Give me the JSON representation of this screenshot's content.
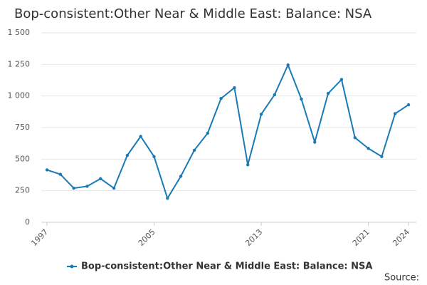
{
  "chart_data": {
    "type": "line",
    "title": "Bop-consistent:Other Near & Middle East: Balance: NSA",
    "x": [
      1997,
      1998,
      1999,
      2000,
      2001,
      2002,
      2003,
      2004,
      2005,
      2006,
      2007,
      2008,
      2009,
      2010,
      2011,
      2012,
      2013,
      2014,
      2015,
      2016,
      2017,
      2018,
      2019,
      2020,
      2021,
      2022,
      2023,
      2024
    ],
    "series": [
      {
        "name": "Bop-consistent:Other Near & Middle East: Balance: NSA",
        "color": "#1a7ab5",
        "values": [
          415,
          380,
          270,
          285,
          345,
          270,
          530,
          680,
          520,
          190,
          365,
          570,
          705,
          980,
          1065,
          455,
          855,
          1010,
          1245,
          975,
          635,
          1020,
          1130,
          670,
          585,
          520,
          860,
          930
        ]
      }
    ],
    "xlim": [
      1997,
      2024
    ],
    "xticks": [
      1997,
      2005,
      2013,
      2021,
      2024
    ],
    "ylim": [
      0,
      1500
    ],
    "yticks": [
      0,
      250,
      500,
      750,
      {
        "value": 1000,
        "label": "1 000"
      },
      {
        "value": 1250,
        "label": "1 250"
      },
      {
        "value": 1500,
        "label": "1 500"
      }
    ],
    "grid": true,
    "legend": "bottom",
    "source": "Source:"
  }
}
